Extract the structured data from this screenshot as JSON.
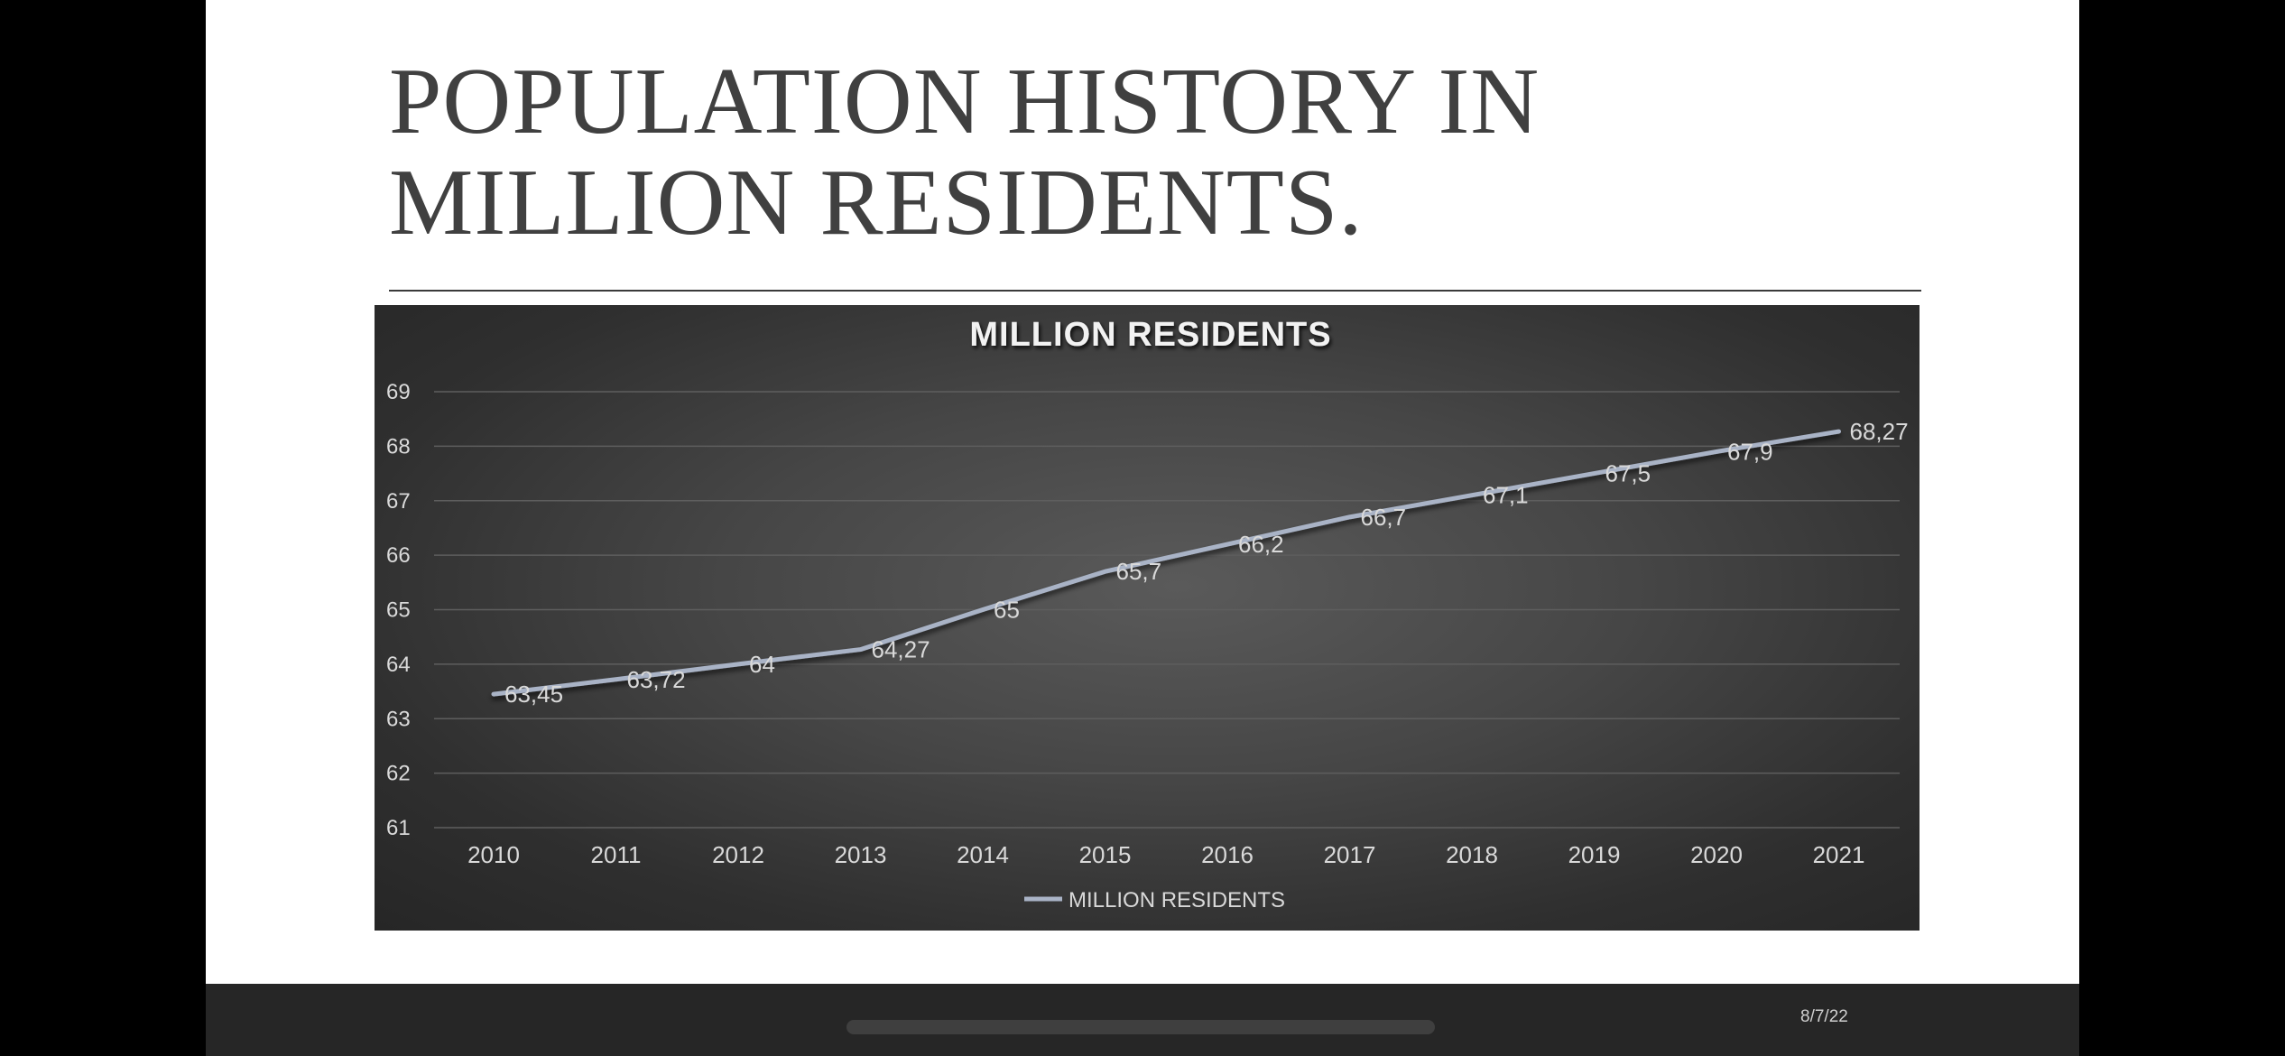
{
  "slide": {
    "title_line1": "POPULATION HISTORY IN",
    "title_line2": "MILLION RESIDENTS."
  },
  "footer": {
    "date": "8/7/22"
  },
  "chart_data": {
    "type": "line",
    "title": "MILLION RESIDENTS",
    "xlabel": "",
    "ylabel": "",
    "categories": [
      "2010",
      "2011",
      "2012",
      "2013",
      "2014",
      "2015",
      "2016",
      "2017",
      "2018",
      "2019",
      "2020",
      "2021"
    ],
    "series": [
      {
        "name": "MILLION RESIDENTS",
        "values": [
          63.45,
          63.72,
          64,
          64.27,
          65,
          65.7,
          66.2,
          66.7,
          67.1,
          67.5,
          67.9,
          68.27
        ],
        "labels": [
          "63,45",
          "63,72",
          "64",
          "64,27",
          "65",
          "65,7",
          "66,2",
          "66,7",
          "67,1",
          "67,5",
          "67,9",
          "68,27"
        ],
        "color": "#a9b3c6"
      }
    ],
    "ylim": [
      61,
      69
    ],
    "yticks": [
      61,
      62,
      63,
      64,
      65,
      66,
      67,
      68,
      69
    ],
    "grid": true,
    "legend": "bottom",
    "colors": {
      "background": "#3f3f3f",
      "gridline": "#5e5e5e",
      "text": "#d9d9d9",
      "title": "#f2f2f2"
    }
  }
}
